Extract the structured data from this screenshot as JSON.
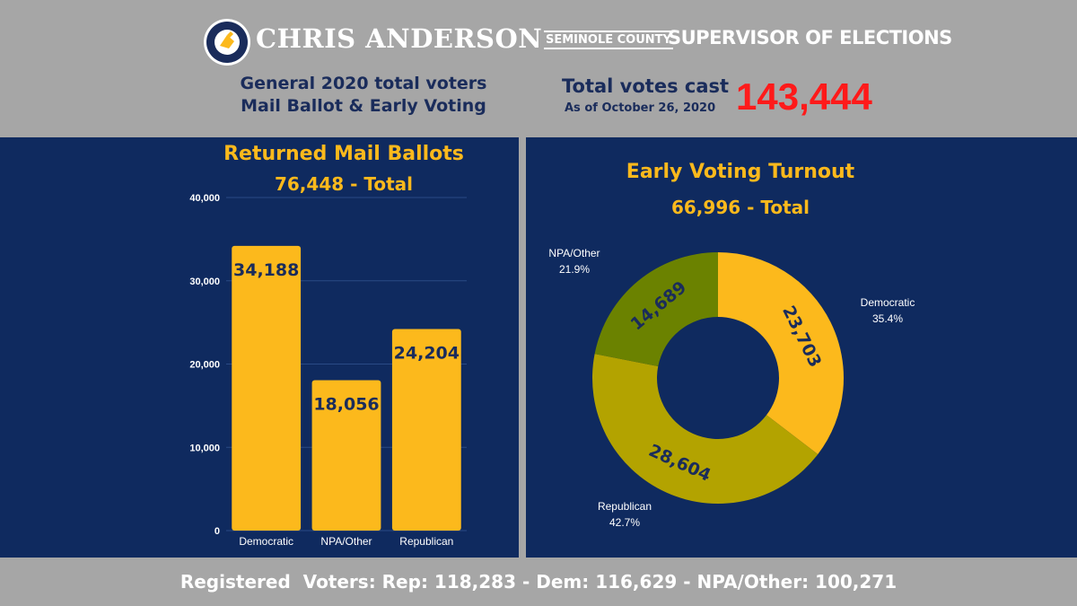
{
  "header": {
    "logo_text": "SEMINOLE COUNTY SUPERVISOR OF ELECTIONS",
    "brand_name": "CHRIS ANDERSON",
    "brand_county": "SEMINOLE COUNTY",
    "brand_office": "SUPERVISOR OF ELECTIONS",
    "subtitle_line1": "General 2020 total voters",
    "subtitle_line2": "Mail Ballot & Early Voting",
    "total_label": "Total votes cast",
    "total_date": "As of October 26, 2020",
    "total_value": "143,444"
  },
  "colors": {
    "panel_bg": "#0f2a5f",
    "gold": "#fcb91c",
    "olive": "#b3a300",
    "green": "#6b8200",
    "red": "#ff1a1a",
    "navy_text": "#1a2c5b"
  },
  "chart_data": [
    {
      "type": "bar",
      "title": "Returned Mail Ballots",
      "subtitle": "76,448 - Total",
      "categories": [
        "Democratic",
        "NPA/Other",
        "Republican"
      ],
      "values": [
        34188,
        18056,
        24204
      ],
      "value_labels": [
        "34,188",
        "18,056",
        "24,204"
      ],
      "y_ticks": [
        0,
        10000,
        20000,
        30000,
        40000
      ],
      "y_tick_labels": [
        "0",
        "10,000",
        "20,000",
        "30,000",
        "40,000"
      ],
      "ylim": [
        0,
        40000
      ],
      "grid": true,
      "bar_color": "#fcb91c"
    },
    {
      "type": "pie",
      "donut": true,
      "title": "Early Voting Turnout",
      "subtitle": "66,996 - Total",
      "slices": [
        {
          "name": "Democratic",
          "value": 23703,
          "label": "23,703",
          "percent": "35.4%",
          "color": "#fcb91c"
        },
        {
          "name": "Republican",
          "value": 28604,
          "label": "28,604",
          "percent": "42.7%",
          "color": "#b3a300"
        },
        {
          "name": "NPA/Other",
          "value": 14689,
          "label": "14,689",
          "percent": "21.9%",
          "color": "#6b8200"
        }
      ]
    }
  ],
  "footer": {
    "text": "Registered  Voters: Rep: 118,283 - Dem: 116,629 - NPA/Other: 100,271"
  }
}
